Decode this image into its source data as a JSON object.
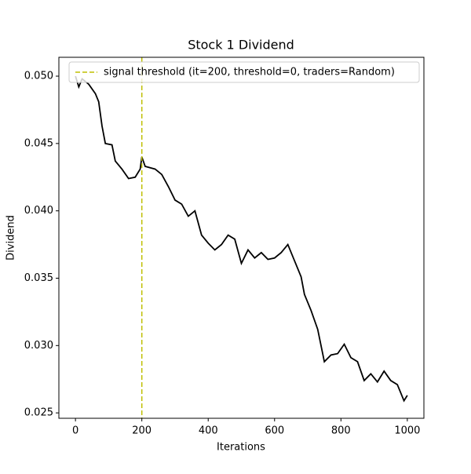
{
  "chart_data": {
    "type": "line",
    "title": "Stock 1 Dividend",
    "xlabel": "Iterations",
    "ylabel": "Dividend",
    "x": [
      0,
      10,
      20,
      40,
      60,
      70,
      80,
      90,
      110,
      120,
      140,
      160,
      180,
      195,
      200,
      210,
      240,
      260,
      280,
      300,
      320,
      340,
      360,
      380,
      400,
      420,
      440,
      460,
      480,
      500,
      520,
      540,
      560,
      580,
      600,
      620,
      640,
      660,
      680,
      690,
      710,
      730,
      750,
      770,
      790,
      810,
      830,
      850,
      870,
      890,
      910,
      930,
      950,
      970,
      990,
      1000
    ],
    "series": [
      {
        "name": "Stock 1 Dividend",
        "color": "#000000",
        "values": [
          0.05,
          0.0492,
          0.0498,
          0.0494,
          0.0487,
          0.0481,
          0.0463,
          0.045,
          0.0449,
          0.0437,
          0.0431,
          0.0424,
          0.0425,
          0.0431,
          0.044,
          0.0433,
          0.0431,
          0.0427,
          0.0418,
          0.0408,
          0.0405,
          0.0396,
          0.04,
          0.0382,
          0.0376,
          0.0371,
          0.0375,
          0.0382,
          0.0379,
          0.0361,
          0.0371,
          0.0365,
          0.0369,
          0.0364,
          0.0365,
          0.0369,
          0.0375,
          0.0363,
          0.0351,
          0.0338,
          0.0326,
          0.0312,
          0.0288,
          0.0293,
          0.0294,
          0.0301,
          0.0291,
          0.0288,
          0.0274,
          0.0279,
          0.0273,
          0.0281,
          0.0274,
          0.0271,
          0.0259,
          0.0263
        ]
      }
    ],
    "threshold": {
      "x": 200,
      "label": "signal threshold (it=200, threshold=0, traders=Random)",
      "color": "#bfbf00"
    },
    "legend": "upper right",
    "xlim": [
      -50,
      1050
    ],
    "xticks": [
      0,
      200,
      400,
      600,
      800,
      1000
    ],
    "ylim": [
      0.0246,
      0.0514
    ],
    "yticks": [
      {
        "value": 0.025,
        "label": "0.025"
      },
      {
        "value": 0.03,
        "label": "0.030"
      },
      0.035,
      {
        "value": 0.04,
        "label": "0.040"
      },
      0.045,
      {
        "value": 0.05,
        "label": "0.050"
      }
    ]
  }
}
